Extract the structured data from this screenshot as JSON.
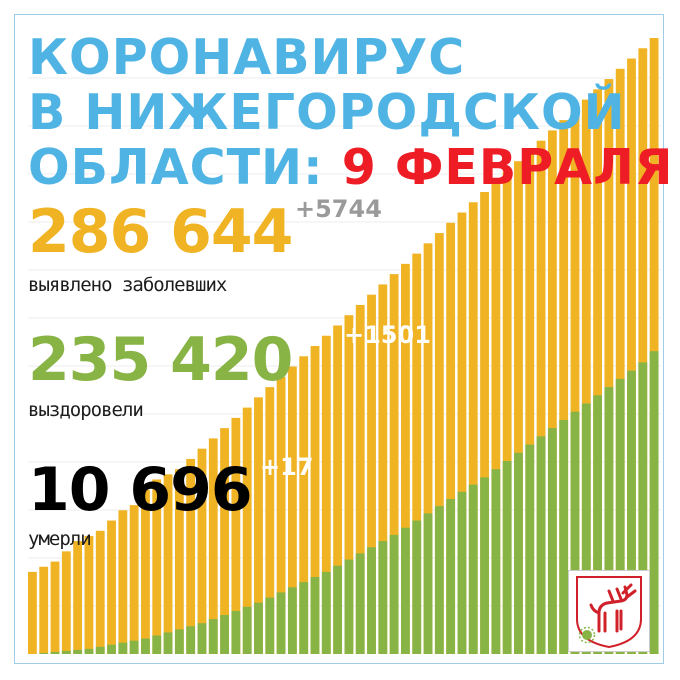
{
  "headline": {
    "line1": "КОРОНАВИРУС",
    "line2": "В НИЖЕГОРОДСКОЙ",
    "line3": "ОБЛАСТИ:",
    "date": "9 ФЕВРАЛЯ"
  },
  "stats": {
    "cases": {
      "value": "286 644",
      "delta": "+5744",
      "label": "выявлено заболевших"
    },
    "recovered": {
      "value": "235 420",
      "delta": "+1501",
      "label": "выздоровели"
    },
    "deaths": {
      "value": "10 696",
      "delta": "+17",
      "label": "умерли"
    }
  },
  "colors": {
    "cases": "#f0b324",
    "recovered": "#88b446",
    "title": "#4fb4e4",
    "date": "#ee1c24"
  },
  "emblem": {
    "icon": "nizhny-novgorod-deer-emblem-icon"
  },
  "chart_data": {
    "type": "bar",
    "stacked": true,
    "series": [
      {
        "values": [
          8,
          8.5,
          9,
          10,
          11,
          11.5,
          12,
          13,
          14,
          14.5,
          16,
          17,
          17.5,
          18,
          19,
          20,
          21,
          22,
          23,
          24,
          25,
          26,
          27,
          28,
          29,
          30,
          31,
          32,
          33,
          34,
          35,
          36,
          37,
          38,
          39,
          40,
          41,
          42,
          43,
          44,
          45,
          46,
          47,
          48,
          49,
          50,
          51,
          52,
          53,
          54,
          55,
          56,
          57,
          58,
          59,
          60
        ]
      },
      {
        "values": [
          0,
          0.1,
          0.2,
          0.3,
          0.4,
          0.5,
          0.7,
          0.9,
          1.1,
          1.3,
          1.5,
          1.8,
          2.1,
          2.4,
          2.7,
          3,
          3.4,
          3.8,
          4.2,
          4.6,
          5,
          5.5,
          6,
          6.5,
          7,
          7.5,
          8,
          8.6,
          9.2,
          9.8,
          10.4,
          11,
          11.6,
          12.3,
          13,
          13.7,
          14.4,
          15.1,
          15.8,
          16.5,
          17.2,
          18,
          18.8,
          19.6,
          20.4,
          21.2,
          22,
          22.8,
          23.6,
          24.4,
          25.2,
          26,
          26.8,
          27.6,
          28.4,
          29.5
        ]
      }
    ],
    "grid": true
  }
}
